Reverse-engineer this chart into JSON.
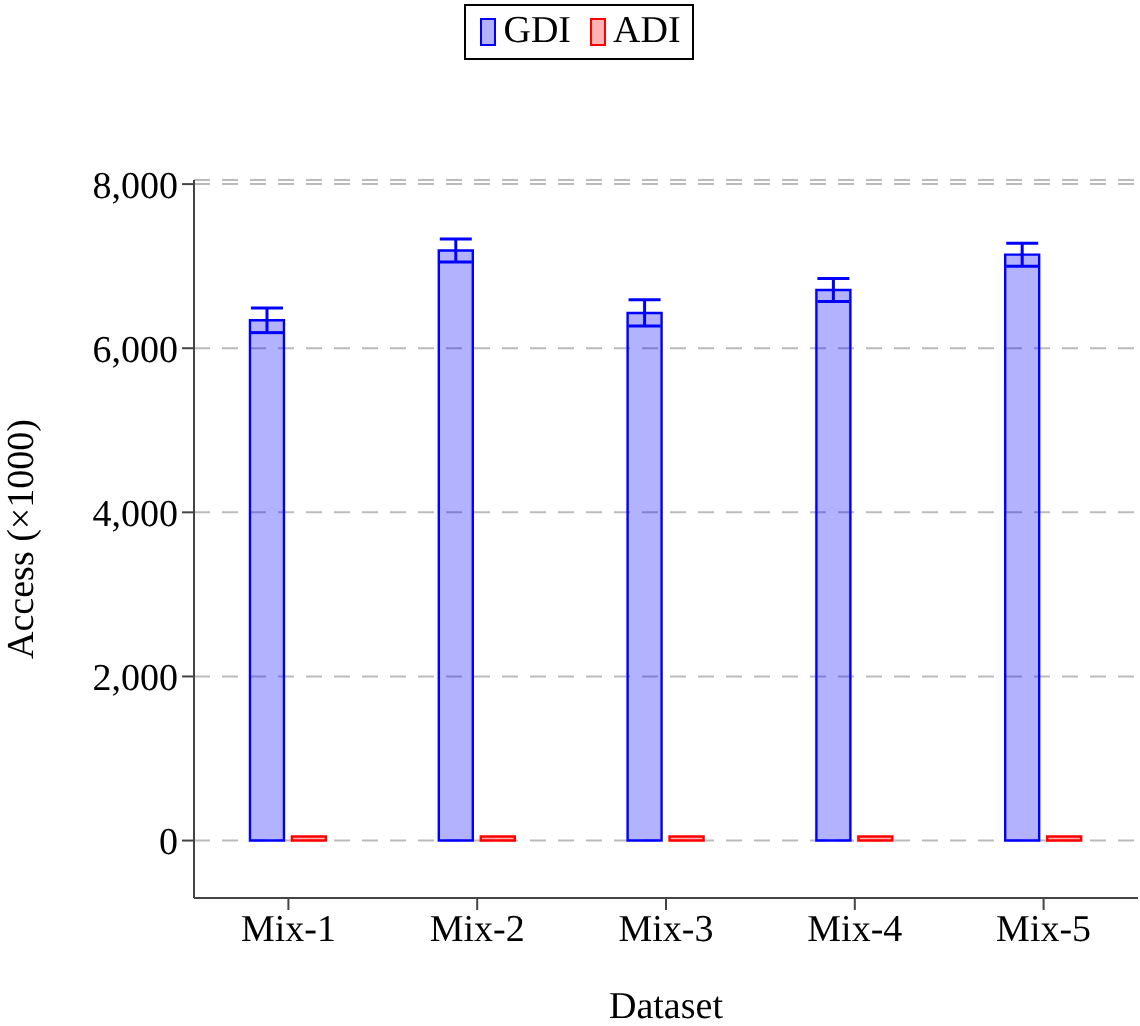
{
  "chart_data": {
    "type": "bar",
    "xlabel": "Dataset",
    "ylabel": "Access (×1000)",
    "categories": [
      "Mix-1",
      "Mix-2",
      "Mix-3",
      "Mix-4",
      "Mix-5"
    ],
    "series": [
      {
        "name": "GDI",
        "color": "#0000ff",
        "values": [
          6340,
          7190,
          6430,
          6710,
          7140
        ],
        "errors": [
          150,
          140,
          160,
          140,
          140
        ]
      },
      {
        "name": "ADI",
        "color": "#ff0000",
        "values": [
          50,
          50,
          50,
          50,
          50
        ]
      }
    ],
    "ylim": [
      -700,
      8050
    ],
    "yticks": [
      {
        "value": 0,
        "label": "0"
      },
      {
        "value": 2000,
        "label": "2,000"
      },
      {
        "value": 4000,
        "label": "4,000"
      },
      {
        "value": 6000,
        "label": "6,000"
      },
      {
        "value": 8000,
        "label": "8,000"
      }
    ],
    "grid": "y",
    "legend": "top"
  }
}
